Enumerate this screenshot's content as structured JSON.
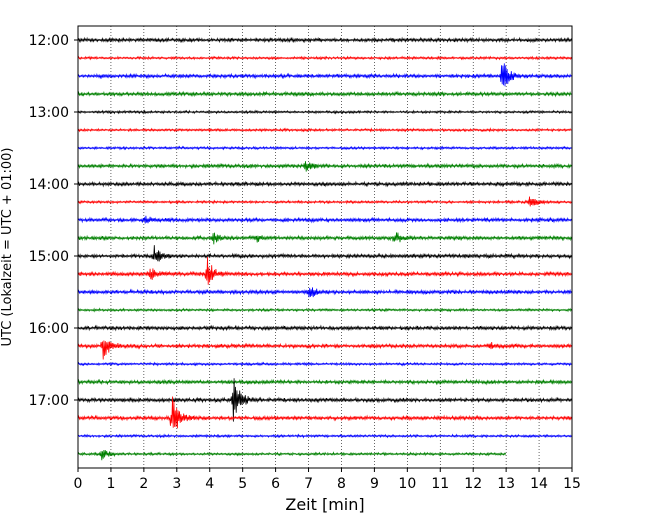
{
  "chart_data": {
    "type": "line",
    "title": "",
    "xlabel": "Zeit  [min]",
    "ylabel": "UTC (Lokalzeit = UTC + 01:00)",
    "xlim": [
      0,
      15
    ],
    "x_ticks": [
      "0",
      "1",
      "2",
      "3",
      "4",
      "5",
      "6",
      "7",
      "8",
      "9",
      "10",
      "11",
      "12",
      "13",
      "14",
      "15"
    ],
    "y_ticks": [
      "12:00",
      "13:00",
      "14:00",
      "15:00",
      "16:00",
      "17:00"
    ],
    "grid": "vertical dotted",
    "trace_interval_min": 15,
    "colors": [
      "#000000",
      "#ff0000",
      "#0000ff",
      "#008000"
    ],
    "rows": [
      {
        "time": "12:00",
        "color": "#000000",
        "end_min": 15,
        "noise": 3,
        "events": []
      },
      {
        "time": "12:15",
        "color": "#ff0000",
        "end_min": 15,
        "noise": 2,
        "events": []
      },
      {
        "time": "12:30",
        "color": "#0000ff",
        "end_min": 15,
        "noise": 3,
        "events": [
          {
            "t": 12.85,
            "amp": 20
          }
        ]
      },
      {
        "time": "12:45",
        "color": "#008000",
        "end_min": 15,
        "noise": 3,
        "events": []
      },
      {
        "time": "13:00",
        "color": "#000000",
        "end_min": 15,
        "noise": 2,
        "events": []
      },
      {
        "time": "13:15",
        "color": "#ff0000",
        "end_min": 15,
        "noise": 2,
        "events": []
      },
      {
        "time": "13:30",
        "color": "#0000ff",
        "end_min": 15,
        "noise": 2,
        "events": []
      },
      {
        "time": "13:45",
        "color": "#008000",
        "end_min": 15,
        "noise": 3,
        "events": [
          {
            "t": 6.9,
            "amp": 5
          }
        ]
      },
      {
        "time": "14:00",
        "color": "#000000",
        "end_min": 15,
        "noise": 3,
        "events": []
      },
      {
        "time": "14:15",
        "color": "#ff0000",
        "end_min": 15,
        "noise": 2,
        "events": [
          {
            "t": 13.7,
            "amp": 7
          }
        ]
      },
      {
        "time": "14:30",
        "color": "#0000ff",
        "end_min": 15,
        "noise": 3,
        "events": [
          {
            "t": 2.0,
            "amp": 5
          }
        ]
      },
      {
        "time": "14:45",
        "color": "#008000",
        "end_min": 15,
        "noise": 3,
        "events": [
          {
            "t": 4.1,
            "amp": 6
          },
          {
            "t": 5.4,
            "amp": 4
          },
          {
            "t": 9.6,
            "amp": 7
          }
        ]
      },
      {
        "time": "15:00",
        "color": "#000000",
        "end_min": 15,
        "noise": 3,
        "events": [
          {
            "t": 2.3,
            "amp": 10
          }
        ]
      },
      {
        "time": "15:15",
        "color": "#ff0000",
        "end_min": 15,
        "noise": 3,
        "events": [
          {
            "t": 2.15,
            "amp": 8
          },
          {
            "t": 3.9,
            "amp": 18
          }
        ]
      },
      {
        "time": "15:30",
        "color": "#0000ff",
        "end_min": 15,
        "noise": 3,
        "events": [
          {
            "t": 7.0,
            "amp": 8
          }
        ]
      },
      {
        "time": "15:45",
        "color": "#008000",
        "end_min": 15,
        "noise": 2,
        "events": []
      },
      {
        "time": "16:00",
        "color": "#000000",
        "end_min": 15,
        "noise": 3,
        "events": []
      },
      {
        "time": "16:15",
        "color": "#ff0000",
        "end_min": 15,
        "noise": 3,
        "events": [
          {
            "t": 0.75,
            "amp": 14
          },
          {
            "t": 12.5,
            "amp": 3
          }
        ]
      },
      {
        "time": "16:30",
        "color": "#0000ff",
        "end_min": 15,
        "noise": 2,
        "events": []
      },
      {
        "time": "16:45",
        "color": "#008000",
        "end_min": 15,
        "noise": 3,
        "events": []
      },
      {
        "time": "17:00",
        "color": "#000000",
        "end_min": 15,
        "noise": 3,
        "events": [
          {
            "t": 4.7,
            "amp": 28
          }
        ]
      },
      {
        "time": "17:15",
        "color": "#ff0000",
        "end_min": 15,
        "noise": 3,
        "events": [
          {
            "t": 2.85,
            "amp": 25
          }
        ]
      },
      {
        "time": "17:30",
        "color": "#0000ff",
        "end_min": 15,
        "noise": 2,
        "events": []
      },
      {
        "time": "17:45",
        "color": "#008000",
        "end_min": 13,
        "noise": 2,
        "events": [
          {
            "t": 0.7,
            "amp": 7
          }
        ]
      }
    ]
  }
}
